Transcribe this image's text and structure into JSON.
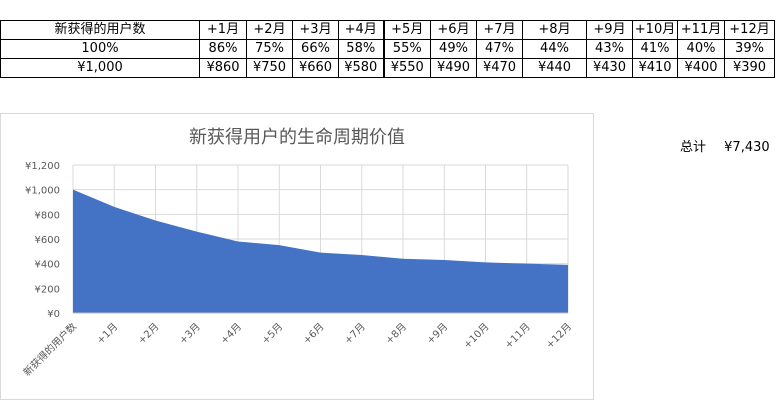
{
  "table": {
    "header": [
      "新获得的用户数",
      "+1月",
      "+2月",
      "+3月",
      "+4月",
      "+5月",
      "+6月",
      "+7月",
      "+8月",
      "+9月",
      "+10月",
      "+11月",
      "+12月"
    ],
    "retention": [
      "100%",
      "86%",
      "75%",
      "66%",
      "58%",
      "55%",
      "49%",
      "47%",
      "44%",
      "43%",
      "41%",
      "40%",
      "39%"
    ],
    "value": [
      "¥1,000",
      "¥860",
      "¥750",
      "¥660",
      "¥580",
      "¥550",
      "¥490",
      "¥470",
      "¥440",
      "¥430",
      "¥410",
      "¥400",
      "¥390"
    ]
  },
  "total": {
    "label": "总计",
    "value": "¥7,430"
  },
  "colors": {
    "area": "#4472C4",
    "grid": "#d9d9d9",
    "axis_text": "#595959"
  },
  "chart_data": {
    "type": "area",
    "title": "新获得用户的生命周期价值",
    "categories": [
      "新获得的用户数",
      "+1月",
      "+2月",
      "+3月",
      "+4月",
      "+5月",
      "+6月",
      "+7月",
      "+8月",
      "+9月",
      "+10月",
      "+11月",
      "+12月"
    ],
    "series": [
      {
        "name": "价值",
        "values": [
          1000,
          860,
          750,
          660,
          580,
          550,
          490,
          470,
          440,
          430,
          410,
          400,
          390
        ]
      }
    ],
    "xlabel": "",
    "ylabel": "",
    "ylim": [
      0,
      1200
    ],
    "yticks": [
      "¥0",
      "¥200",
      "¥400",
      "¥600",
      "¥800",
      "¥1,000",
      "¥1,200"
    ],
    "grid": true,
    "legend": "none"
  }
}
